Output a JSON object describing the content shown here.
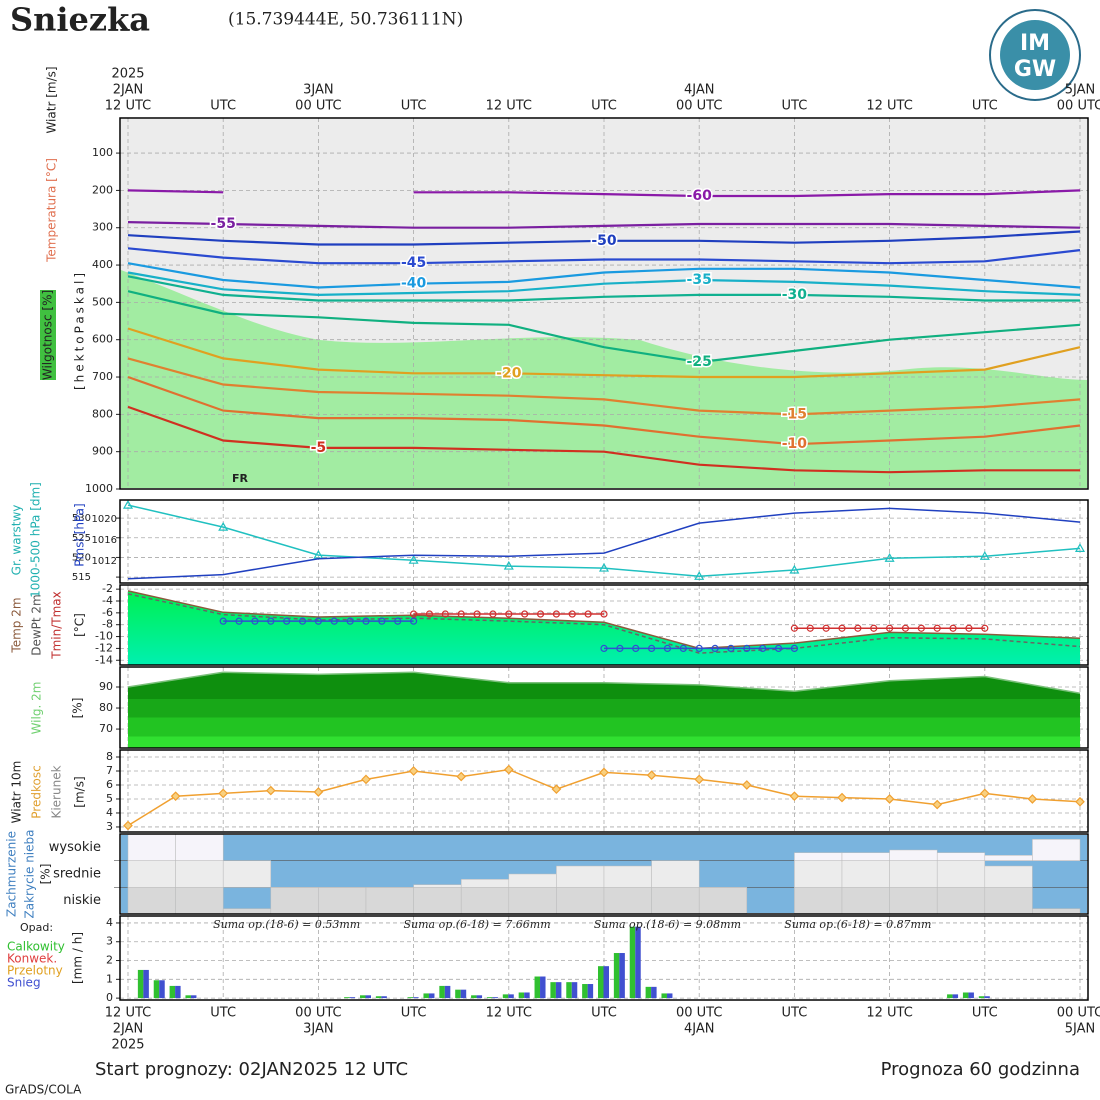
{
  "header": {
    "title": "Sniezka",
    "coords": "(15.739444E, 50.736111N)",
    "logo_top": "IM",
    "logo_bottom": "GW"
  },
  "time_axis": {
    "xlim": [
      0,
      60
    ],
    "ticks": [
      {
        "value": 0,
        "label": "12 UTC"
      },
      {
        "value": 6,
        "label": "UTC"
      },
      {
        "value": 12,
        "label": "00 UTC"
      },
      {
        "value": 18,
        "label": "UTC"
      },
      {
        "value": 24,
        "label": "12 UTC"
      },
      {
        "value": 30,
        "label": "UTC"
      },
      {
        "value": 36,
        "label": "00 UTC"
      },
      {
        "value": 42,
        "label": "UTC"
      },
      {
        "value": 48,
        "label": "12 UTC"
      },
      {
        "value": 54,
        "label": "UTC"
      },
      {
        "value": 60,
        "label": "00 UTC"
      }
    ],
    "dates": [
      {
        "value": 0,
        "label": "2JAN"
      },
      {
        "value": 12,
        "label": "3JAN"
      },
      {
        "value": 36,
        "label": "4JAN"
      },
      {
        "value": 60,
        "label": "5JAN"
      }
    ],
    "year": {
      "value": 0,
      "label": "2025"
    }
  },
  "chart_data": [
    {
      "type": "line",
      "ylim": [
        1000,
        6
      ],
      "yticks": [
        100,
        200,
        300,
        400,
        500,
        600,
        700,
        800,
        900,
        1000
      ],
      "grid": true,
      "contour_labels": true,
      "ylabels": [
        {
          "label": "Wiatr [m/s]",
          "color": "#222222"
        },
        {
          "label": "Temperatura [°C]",
          "color": "#e07050"
        },
        {
          "label": "Wilgotnosc [%]",
          "color": "#222222"
        },
        {
          "label": "[hektoPaskal]",
          "color": "#222222"
        }
      ],
      "annotation": "FR",
      "x": [
        0,
        6,
        12,
        18,
        24,
        30,
        36,
        42,
        48,
        54,
        60
      ],
      "series": [
        {
          "name": "-60",
          "color": "#8a1aa8",
          "values": [
            200,
            205,
            null,
            205,
            205,
            210,
            215,
            215,
            210,
            210,
            200
          ]
        },
        {
          "name": "-55",
          "color": "#7a1fa0",
          "values": [
            285,
            290,
            295,
            300,
            300,
            295,
            290,
            290,
            290,
            295,
            300
          ]
        },
        {
          "name": "-50",
          "color": "#1f3fbf",
          "values": [
            320,
            335,
            345,
            345,
            340,
            335,
            335,
            340,
            335,
            325,
            310
          ]
        },
        {
          "name": "-45",
          "color": "#2a4ad0",
          "values": [
            355,
            380,
            395,
            395,
            390,
            385,
            385,
            390,
            395,
            390,
            360
          ]
        },
        {
          "name": "-40",
          "color": "#1a9ae0",
          "values": [
            395,
            440,
            460,
            450,
            445,
            420,
            410,
            410,
            420,
            440,
            460
          ]
        },
        {
          "name": "-35",
          "color": "#18b0c8",
          "values": [
            420,
            465,
            480,
            475,
            470,
            450,
            440,
            445,
            455,
            470,
            480
          ]
        },
        {
          "name": "-30",
          "color": "#10b090",
          "values": [
            430,
            480,
            495,
            495,
            495,
            485,
            480,
            480,
            485,
            495,
            495
          ]
        },
        {
          "name": "-25",
          "color": "#10b080",
          "values": [
            470,
            530,
            540,
            555,
            560,
            620,
            660,
            630,
            600,
            580,
            560
          ]
        },
        {
          "name": "-20",
          "color": "#e0a020",
          "values": [
            570,
            650,
            680,
            690,
            690,
            695,
            700,
            700,
            690,
            680,
            620
          ]
        },
        {
          "name": "-15",
          "color": "#e08030",
          "values": [
            650,
            720,
            740,
            745,
            750,
            760,
            790,
            800,
            790,
            780,
            760
          ]
        },
        {
          "name": "-10",
          "color": "#e07030",
          "values": [
            700,
            790,
            810,
            810,
            815,
            830,
            860,
            880,
            870,
            860,
            830
          ]
        },
        {
          "name": "-5",
          "color": "#d03020",
          "values": [
            780,
            870,
            890,
            890,
            895,
            900,
            935,
            950,
            955,
            950,
            950
          ]
        }
      ]
    },
    {
      "type": "line",
      "ylim": [
        513.5,
        534.6
      ],
      "yticks": [
        515,
        520,
        525,
        530
      ],
      "y2lim": [
        1007.8,
        1023.6
      ],
      "y2ticks": [
        1012,
        1016,
        1020
      ],
      "grid": true,
      "ylabels": [
        {
          "label": "Gr. warstwy",
          "color": "#20b0b0"
        },
        {
          "label": "1000-500 hPa [dm]",
          "color": "#20b0b0"
        },
        {
          "label": "Pmsl [hPa]",
          "color": "#2040c0"
        }
      ],
      "x": [
        0,
        6,
        12,
        18,
        24,
        30,
        36,
        42,
        48,
        54,
        60
      ],
      "series": [
        {
          "color": "#20c0c0",
          "marker": "triangle",
          "values": [
            533.3,
            527.7,
            520.6,
            519.3,
            517.8,
            517.3,
            515.2,
            516.8,
            519.8,
            520.3,
            522.3
          ]
        },
        {
          "color": "#2040c0",
          "axis": "y2",
          "values": [
            1008.6,
            1009.4,
            1012.4,
            1013.1,
            1012.9,
            1013.5,
            1019.2,
            1021.1,
            1022.0,
            1021.1,
            1019.4
          ]
        }
      ]
    },
    {
      "type": "line",
      "ylim": [
        -14.8,
        -1.3
      ],
      "yticks": [
        -2,
        -4,
        -6,
        -8,
        -10,
        -12,
        -14
      ],
      "grid": true,
      "ylabels": [
        {
          "label": "Temp 2m",
          "color": "#8b5a3c"
        },
        {
          "label": "DewPt 2m",
          "color": "#555555"
        },
        {
          "label": "Tmin/Tmax",
          "color": "#c03030"
        },
        {
          "label": "[°C]",
          "color": "#222222"
        }
      ],
      "x": [
        0,
        6,
        12,
        18,
        24,
        30,
        36,
        42,
        48,
        54,
        60
      ],
      "series": [
        {
          "color": "#8b5a3c",
          "fill": true,
          "values": [
            -2.3,
            -5.9,
            -6.7,
            -6.4,
            -6.9,
            -7.6,
            -12,
            -11.1,
            -9.3,
            -9.6,
            -10.3
          ]
        },
        {
          "color": "#666666",
          "dashed": true,
          "values": [
            -2.8,
            -6.3,
            -7.2,
            -6.9,
            -7.4,
            -8.0,
            -12.8,
            -12.0,
            -10.2,
            -10.4,
            -11.7
          ]
        },
        {
          "color": "#3050d0",
          "segments": [
            {
              "x": [
                6,
                18
              ],
              "value": -7.4
            },
            {
              "x": [
                30,
                42
              ],
              "value": -12
            }
          ]
        },
        {
          "color": "#d03030",
          "segments": [
            {
              "x": [
                18,
                30
              ],
              "value": -6.2
            },
            {
              "x": [
                42,
                54
              ],
              "value": -8.6
            }
          ]
        }
      ]
    },
    {
      "type": "area",
      "ylim": [
        61,
        99.5
      ],
      "yticks": [
        70,
        80,
        90
      ],
      "grid": true,
      "ylabels": [
        {
          "label": "Wilg. 2m",
          "color": "#70d070"
        },
        {
          "label": "[%]",
          "color": "#222222"
        }
      ],
      "x": [
        0,
        6,
        12,
        18,
        24,
        30,
        36,
        42,
        48,
        54,
        60
      ],
      "series": [
        {
          "color": "#0e8f0e",
          "values": [
            90,
            97,
            96,
            97,
            92,
            92,
            91,
            88,
            93,
            95,
            87
          ]
        }
      ]
    },
    {
      "type": "line",
      "ylim": [
        2.64,
        8.5
      ],
      "yticks": [
        3,
        4,
        5,
        6,
        7,
        8
      ],
      "grid": true,
      "ylabels": [
        {
          "label": "Wiatr 10m",
          "color": "#222222"
        },
        {
          "label": "Predkosc",
          "color": "#e0a030"
        },
        {
          "label": "Kierunek",
          "color": "#888888"
        },
        {
          "label": "[m/s]",
          "color": "#222222"
        }
      ],
      "x": [
        0,
        3,
        6,
        9,
        12,
        15,
        18,
        21,
        24,
        27,
        30,
        33,
        36,
        39,
        42,
        45,
        48,
        51,
        54,
        57,
        60
      ],
      "series": [
        {
          "color": "#f0a030",
          "marker": "diamond",
          "values": [
            3.1,
            5.2,
            5.4,
            5.6,
            5.5,
            6.4,
            7.0,
            6.6,
            7.1,
            5.7,
            6.9,
            6.7,
            6.4,
            6.0,
            5.2,
            5.1,
            5.0,
            4.6,
            5.4,
            5.0,
            4.8
          ]
        }
      ]
    },
    {
      "type": "cloud",
      "ylim": [
        0,
        100
      ],
      "ylabels": [
        {
          "label": "Zachmurzenie",
          "color": "#4080c0"
        },
        {
          "label": "Zakrycie nieba",
          "color": "#4080c0"
        },
        {
          "label": "[%]",
          "color": "#222222"
        }
      ],
      "categories": [
        "wysokie",
        "srednie",
        "niskie"
      ],
      "x": [
        0,
        3,
        6,
        9,
        12,
        15,
        18,
        21,
        24,
        27,
        30,
        33,
        36,
        39,
        42,
        45,
        48,
        51,
        54,
        57
      ],
      "series": [
        {
          "color": "#f6f4fa",
          "values": [
            100,
            100,
            0,
            0,
            0,
            0,
            0,
            0,
            0,
            0,
            0,
            0,
            0,
            0,
            30,
            30,
            40,
            30,
            20,
            80
          ]
        },
        {
          "color": "#ececec",
          "values": [
            100,
            100,
            100,
            0,
            0,
            0,
            10,
            30,
            50,
            80,
            80,
            100,
            0,
            0,
            100,
            100,
            100,
            100,
            80,
            0
          ]
        },
        {
          "color": "#d8d8d8",
          "values": [
            100,
            100,
            20,
            100,
            100,
            100,
            100,
            100,
            100,
            100,
            100,
            100,
            100,
            0,
            100,
            100,
            100,
            100,
            100,
            20
          ]
        }
      ]
    },
    {
      "type": "bar",
      "ylim": [
        -0.1,
        4.37
      ],
      "yticks": [
        0,
        1,
        2,
        3,
        4
      ],
      "grid": true,
      "ylabels": [
        {
          "label": "[mm / h]",
          "color": "#222222"
        }
      ],
      "title": "Opad:",
      "legend": [
        {
          "label": "Calkowity",
          "color": "#30c030"
        },
        {
          "label": "Konwek.",
          "color": "#e04040"
        },
        {
          "label": "Przelotny",
          "color": "#e0a020"
        },
        {
          "label": "Snieg",
          "color": "#4050d0"
        }
      ],
      "annotations": [
        "Suma op.(18-6) = 0.53mm",
        "Suma op.(6-18) = 7.66mm",
        "Suma op.(18-6) = 9.08mm",
        "Suma op.(6-18) = 0.87mm"
      ],
      "x": [
        1,
        2,
        3,
        4,
        5,
        6,
        7,
        8,
        9,
        10,
        11,
        12,
        13,
        14,
        15,
        16,
        17,
        18,
        19,
        20,
        21,
        22,
        23,
        24,
        25,
        26,
        27,
        28,
        29,
        30,
        31,
        32,
        33,
        34,
        35,
        36,
        37,
        38,
        39,
        40,
        41,
        42,
        43,
        44,
        45,
        46,
        47,
        48,
        49,
        50,
        51,
        52,
        53,
        54,
        55,
        56,
        57,
        58,
        59,
        60
      ],
      "series": [
        {
          "color": "#30c030",
          "values": [
            1.5,
            0.95,
            0.65,
            0.15,
            0,
            0,
            0,
            0,
            0,
            0,
            0,
            0,
            0,
            0.05,
            0.15,
            0.1,
            0,
            0.05,
            0.25,
            0.65,
            0.45,
            0.15,
            0.05,
            0.2,
            0.3,
            1.15,
            0.85,
            0.85,
            0.75,
            1.7,
            2.4,
            3.8,
            0.6,
            0.25,
            0,
            0,
            0,
            0,
            0,
            0,
            0,
            0,
            0,
            0,
            0,
            0,
            0,
            0,
            0,
            0,
            0,
            0.2,
            0.3,
            0.1,
            0,
            0,
            0,
            0,
            0,
            0
          ]
        },
        {
          "color": "#4050d0",
          "values": [
            1.5,
            0.95,
            0.65,
            0.15,
            0,
            0,
            0,
            0,
            0,
            0,
            0,
            0,
            0,
            0.05,
            0.15,
            0.1,
            0,
            0.05,
            0.25,
            0.65,
            0.45,
            0.15,
            0.05,
            0.2,
            0.3,
            1.15,
            0.85,
            0.85,
            0.75,
            1.7,
            2.4,
            3.8,
            0.6,
            0.25,
            0,
            0,
            0,
            0,
            0,
            0,
            0,
            0,
            0,
            0,
            0,
            0,
            0,
            0,
            0,
            0,
            0,
            0.2,
            0.3,
            0.1,
            0,
            0,
            0,
            0,
            0,
            0
          ]
        }
      ]
    }
  ],
  "footer": {
    "start": "Start prognozy: 02JAN2025 12 UTC",
    "range": "Prognoza 60 godzinna",
    "credit": "GrADS/COLA"
  }
}
